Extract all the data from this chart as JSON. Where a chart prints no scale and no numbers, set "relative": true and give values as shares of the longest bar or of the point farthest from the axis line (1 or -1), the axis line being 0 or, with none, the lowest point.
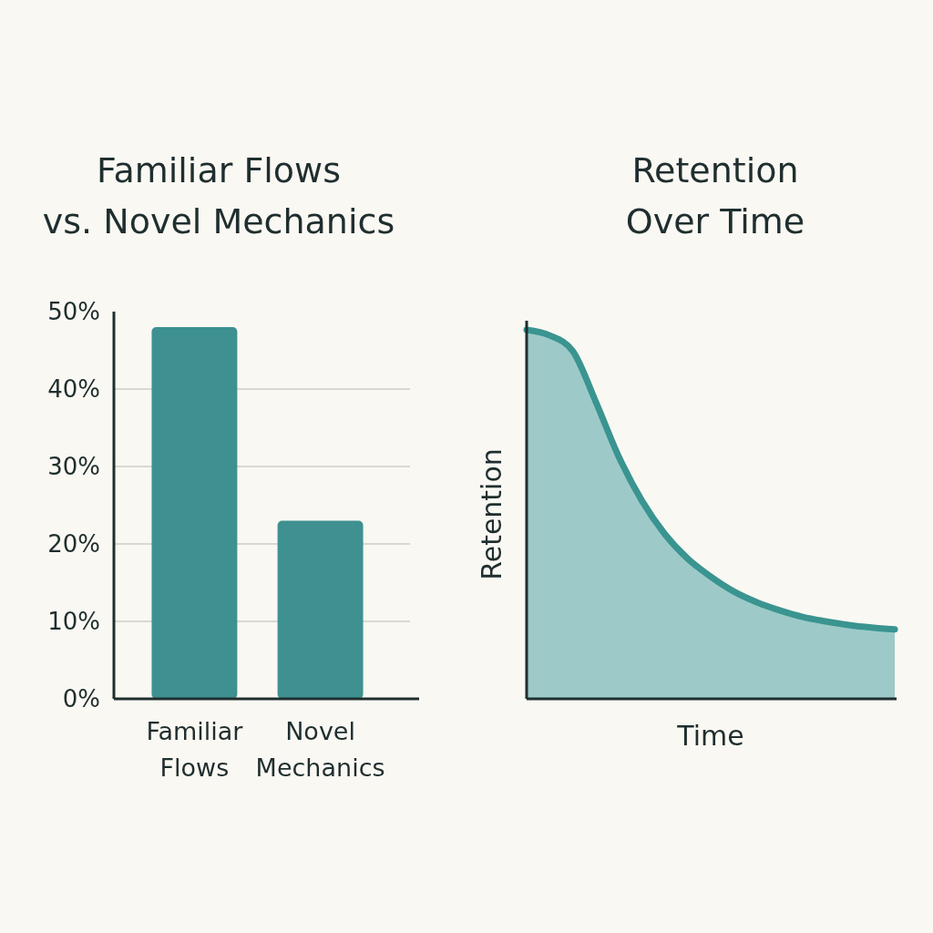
{
  "chart_data": [
    {
      "type": "bar",
      "title": "Familiar Flows\nvs. Novel Mechanics",
      "categories": [
        "Familiar Flows",
        "Novel Mechanics"
      ],
      "values": [
        48,
        23
      ],
      "color": "#3e9190",
      "ylim": [
        0,
        50
      ],
      "yticks": [
        {
          "value": 0,
          "label": "0%"
        },
        {
          "value": 10,
          "label": "10%"
        },
        {
          "value": 20,
          "label": "20%"
        },
        {
          "value": 30,
          "label": "30%"
        },
        {
          "value": 40,
          "label": "40%"
        },
        {
          "value": 50,
          "label": "50%"
        }
      ],
      "grid": "y"
    },
    {
      "type": "area",
      "title": "Retention\nOver Time",
      "xlabel": "Time",
      "ylabel": "Retention",
      "relative": true,
      "categories": [
        null,
        null,
        null,
        null,
        null,
        null,
        null,
        null,
        null,
        null,
        null,
        null,
        null,
        null,
        null,
        null,
        null
      ],
      "series": [
        {
          "color": "#3a9490",
          "values": [
            1,
            0.985,
            0.943,
            0.806,
            0.657,
            0.538,
            0.447,
            0.38,
            0.331,
            0.291,
            0.262,
            0.24,
            0.222,
            0.21,
            0.2,
            0.193,
            0.188
          ]
        }
      ]
    }
  ]
}
